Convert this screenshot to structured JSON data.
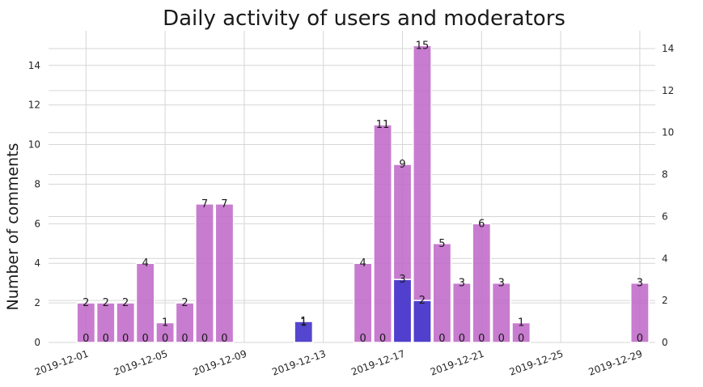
{
  "chart_data": {
    "type": "bar",
    "title": "Daily activity of users and moderators",
    "ylabel": "Number of comments",
    "xlabel": "",
    "left_ylim": [
      0,
      15.75
    ],
    "right_ylim": [
      0,
      14.85
    ],
    "left_yticks": [
      0,
      2,
      4,
      6,
      8,
      10,
      12,
      14
    ],
    "right_yticks": [
      0,
      2,
      4,
      6,
      8,
      10,
      12,
      14
    ],
    "xticks": [
      "2019-12-01",
      "2019-12-05",
      "2019-12-09",
      "2019-12-13",
      "2019-12-17",
      "2019-12-21",
      "2019-12-25",
      "2019-12-29"
    ],
    "grid": true,
    "series": [
      {
        "name": "users",
        "axis": "left",
        "color": "#c06ac8",
        "points": [
          {
            "date": "2019-12-01",
            "value": 2
          },
          {
            "date": "2019-12-02",
            "value": 2
          },
          {
            "date": "2019-12-03",
            "value": 2
          },
          {
            "date": "2019-12-04",
            "value": 4
          },
          {
            "date": "2019-12-05",
            "value": 1
          },
          {
            "date": "2019-12-06",
            "value": 2
          },
          {
            "date": "2019-12-07",
            "value": 7
          },
          {
            "date": "2019-12-08",
            "value": 7
          },
          {
            "date": "2019-12-15",
            "value": 4
          },
          {
            "date": "2019-12-16",
            "value": 11
          },
          {
            "date": "2019-12-17",
            "value": 9
          },
          {
            "date": "2019-12-18",
            "value": 15
          },
          {
            "date": "2019-12-19",
            "value": 5
          },
          {
            "date": "2019-12-20",
            "value": 3
          },
          {
            "date": "2019-12-21",
            "value": 6
          },
          {
            "date": "2019-12-22",
            "value": 3
          },
          {
            "date": "2019-12-23",
            "value": 1
          },
          {
            "date": "2019-12-29",
            "value": 3
          }
        ]
      },
      {
        "name": "moderators",
        "axis": "right",
        "color": "#4b3ccc",
        "points": [
          {
            "date": "2019-12-01",
            "value": 0
          },
          {
            "date": "2019-12-02",
            "value": 0
          },
          {
            "date": "2019-12-03",
            "value": 0
          },
          {
            "date": "2019-12-04",
            "value": 0
          },
          {
            "date": "2019-12-05",
            "value": 0
          },
          {
            "date": "2019-12-06",
            "value": 0
          },
          {
            "date": "2019-12-07",
            "value": 0
          },
          {
            "date": "2019-12-08",
            "value": 0
          },
          {
            "date": "2019-12-12",
            "value": 1
          },
          {
            "date": "2019-12-15",
            "value": 0
          },
          {
            "date": "2019-12-16",
            "value": 0
          },
          {
            "date": "2019-12-17",
            "value": 3
          },
          {
            "date": "2019-12-18",
            "value": 2
          },
          {
            "date": "2019-12-19",
            "value": 0
          },
          {
            "date": "2019-12-20",
            "value": 0
          },
          {
            "date": "2019-12-21",
            "value": 0
          },
          {
            "date": "2019-12-22",
            "value": 0
          },
          {
            "date": "2019-12-23",
            "value": 0
          },
          {
            "date": "2019-12-29",
            "value": 0
          }
        ]
      }
    ],
    "extra_labels": [
      {
        "date": "2019-12-12",
        "text": "1"
      }
    ]
  }
}
